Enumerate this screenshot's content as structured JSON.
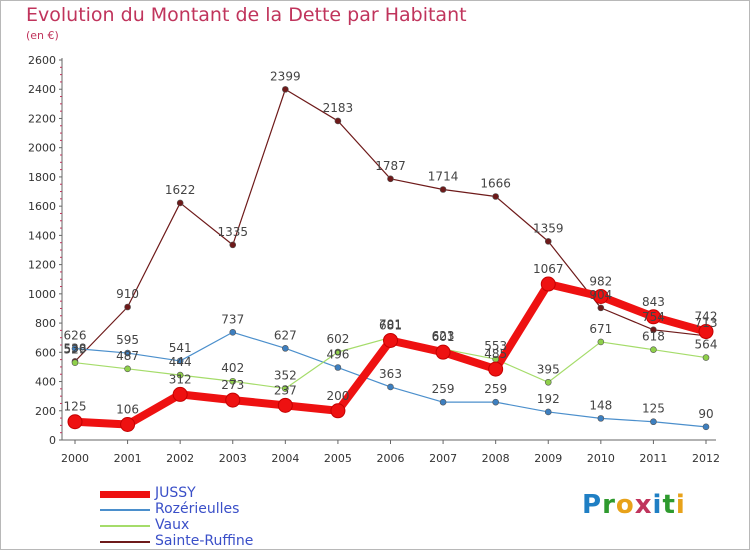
{
  "title": "Evolution du Montant de la Dette par Habitant",
  "subtitle": "(en €)",
  "logo": {
    "text": "Proxiti",
    "colors": [
      "#1f7fc4",
      "#2e9a2e",
      "#e8a21a",
      "#c0345c",
      "#1f7fc4",
      "#2e9a2e",
      "#e8a21a"
    ]
  },
  "chart_data": {
    "type": "line",
    "x": [
      "2000",
      "2001",
      "2002",
      "2003",
      "2004",
      "2005",
      "2006",
      "2007",
      "2008",
      "2009",
      "2010",
      "2011",
      "2012"
    ],
    "ylim": [
      0,
      2600
    ],
    "yticks": [
      "0",
      "200",
      "400",
      "600",
      "800",
      "1000",
      "1200",
      "1400",
      "1600",
      "1800",
      "2000",
      "2200",
      "2400",
      "2600"
    ],
    "grid": false,
    "legend_position": "bottom-left",
    "series": [
      {
        "name": "JUSSY",
        "color": "#ee1111",
        "values": [
          125,
          106,
          312,
          273,
          237,
          200,
          681,
          601,
          485,
          1067,
          982,
          843,
          742
        ],
        "labels": [
          "125",
          "106",
          "312",
          "273",
          "237",
          "200",
          "681",
          "601",
          "485",
          "1067",
          "982",
          "843",
          "742"
        ]
      },
      {
        "name": "Rozérieulles",
        "color": "#4b8fcc",
        "values": [
          626,
          595,
          541,
          737,
          627,
          496,
          363,
          259,
          259,
          192,
          148,
          125,
          90
        ],
        "labels": [
          "626",
          "595",
          "541",
          "737",
          "627",
          "496",
          "363",
          "259",
          "259",
          "192",
          "148",
          "125",
          "90"
        ]
      },
      {
        "name": "Vaux",
        "color": "#a5dc6a",
        "values": [
          529,
          487,
          444,
          402,
          352,
          602,
          701,
          623,
          553,
          395,
          671,
          618,
          564
        ],
        "labels": [
          "529",
          "487",
          "444",
          "402",
          "352",
          "602",
          "701",
          "623",
          "553",
          "395",
          "671",
          "618",
          "564"
        ]
      },
      {
        "name": "Sainte-Ruffine",
        "color": "#6e1a1a",
        "values": [
          538,
          910,
          1622,
          1335,
          2399,
          2183,
          1787,
          1714,
          1666,
          1359,
          904,
          754,
          713
        ],
        "labels": [
          "538",
          "910",
          "1622",
          "1335",
          "2399",
          "2183",
          "1787",
          "1714",
          "1666",
          "1359",
          "904",
          "754",
          "713"
        ]
      }
    ]
  }
}
